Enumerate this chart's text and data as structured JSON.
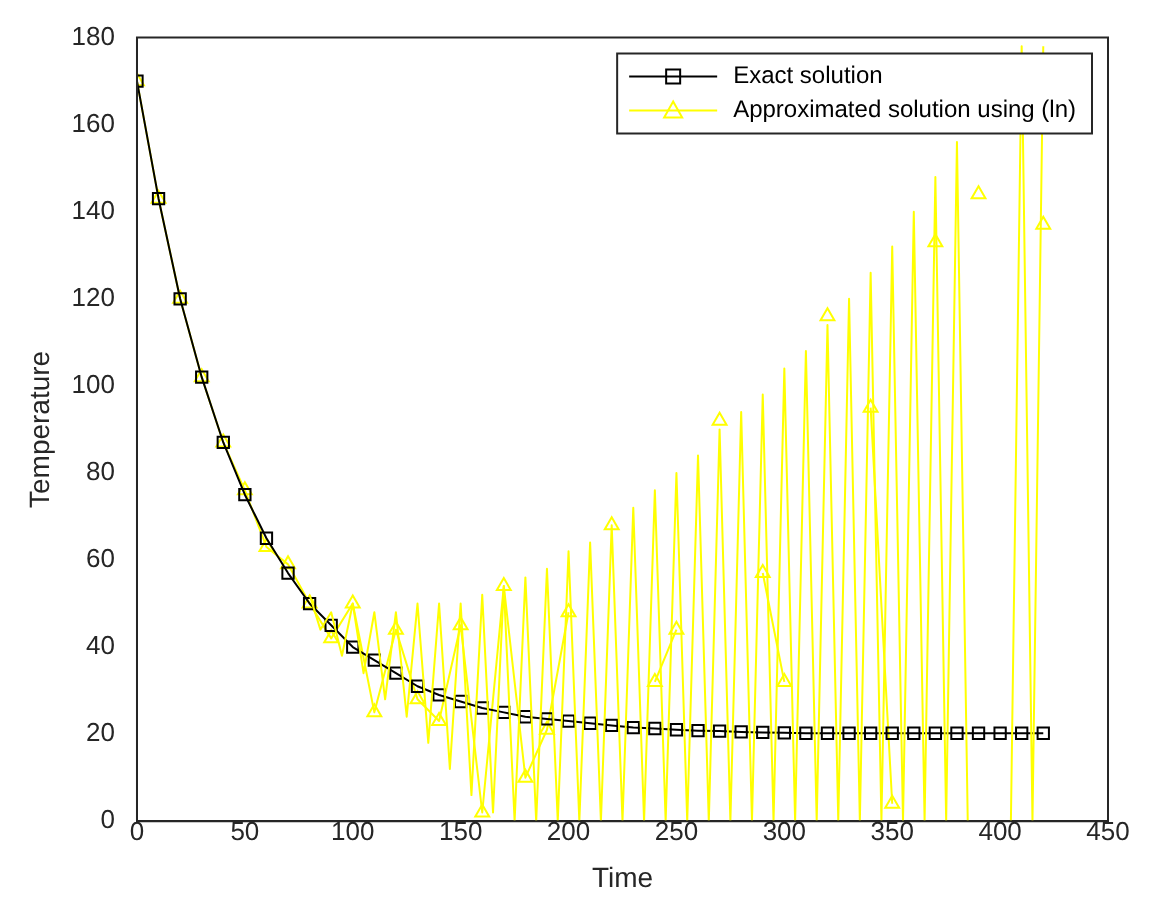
{
  "chart_data": {
    "type": "line",
    "xlabel": "Time",
    "ylabel": "Temperature",
    "xlim": [
      0,
      450
    ],
    "xticks": [
      0,
      50,
      100,
      150,
      200,
      250,
      300,
      350,
      400,
      450
    ],
    "ylim": [
      0,
      180
    ],
    "yticks": [
      0,
      20,
      40,
      60,
      80,
      100,
      120,
      140,
      160,
      180
    ],
    "grid": false,
    "legend": "top right",
    "series": [
      {
        "color": "#ffff00",
        "marker": "none",
        "x": [
          80,
          85,
          90,
          95,
          100,
          105,
          110,
          115,
          120,
          125,
          130,
          135,
          140,
          145,
          150,
          155,
          160,
          165,
          170,
          175,
          180,
          185,
          190,
          195,
          200,
          205,
          210,
          215,
          220,
          225,
          230,
          235,
          240,
          245,
          250,
          255,
          260,
          265,
          270,
          275,
          280,
          285,
          290,
          295,
          300,
          305,
          310,
          315,
          320,
          325,
          330,
          335,
          340,
          345,
          350,
          355,
          360,
          365,
          370,
          375,
          380,
          385,
          390,
          395,
          400,
          405,
          410,
          415,
          420
        ],
        "values": [
          52,
          44,
          48,
          38,
          50,
          34,
          48,
          28,
          48,
          24,
          50,
          18,
          50,
          12,
          50,
          6,
          52,
          2,
          54,
          0,
          56,
          0,
          58,
          0,
          62,
          0,
          64,
          0,
          68,
          0,
          72,
          0,
          76,
          0,
          80,
          0,
          84,
          0,
          90,
          0,
          94,
          0,
          98,
          0,
          104,
          0,
          108,
          0,
          114,
          0,
          120,
          0,
          126,
          0,
          132,
          0,
          140,
          0,
          148,
          0,
          156,
          0,
          null,
          null,
          null,
          0,
          178,
          0,
          178
        ]
      },
      {
        "name": "Exact solution",
        "color": "#000000",
        "marker": "square",
        "x": [
          0,
          10,
          20,
          30,
          40,
          50,
          60,
          70,
          80,
          90,
          100,
          110,
          120,
          130,
          140,
          150,
          160,
          170,
          180,
          190,
          200,
          210,
          220,
          230,
          240,
          250,
          260,
          270,
          280,
          290,
          300,
          310,
          320,
          330,
          340,
          350,
          360,
          370,
          380,
          390,
          400,
          410,
          420
        ],
        "values": [
          170,
          143,
          120,
          102,
          87,
          75,
          65,
          57,
          50,
          45,
          40,
          37,
          34,
          31,
          29,
          27.5,
          26,
          25,
          24,
          23.5,
          23,
          22.5,
          22,
          21.5,
          21.3,
          21,
          20.8,
          20.7,
          20.5,
          20.4,
          20.3,
          20.2,
          20.2,
          20.2,
          20.2,
          20.2,
          20.2,
          20.2,
          20.2,
          20.2,
          20.2,
          20.2,
          20.2
        ]
      },
      {
        "name": "Approximated solution using (ln)",
        "color": "#ffff00",
        "marker": "triangle",
        "x": [
          0,
          10,
          20,
          30,
          40,
          50,
          60,
          70,
          80,
          90,
          100,
          110,
          120,
          130,
          140,
          150,
          160,
          170,
          180,
          190,
          200,
          210,
          220,
          230,
          240,
          250,
          260,
          270,
          280,
          290,
          300,
          310,
          320,
          330,
          340,
          350,
          360,
          370,
          380,
          390,
          400,
          410,
          420
        ],
        "values": [
          170,
          143,
          120,
          102,
          87,
          76,
          63,
          59,
          50,
          42,
          50,
          25,
          44,
          28,
          23,
          45,
          2,
          54,
          10,
          21,
          48,
          null,
          68,
          null,
          32,
          44,
          null,
          92,
          null,
          57,
          32,
          null,
          116,
          null,
          95,
          4,
          null,
          133,
          null,
          144,
          null,
          null,
          137
        ]
      }
    ]
  }
}
